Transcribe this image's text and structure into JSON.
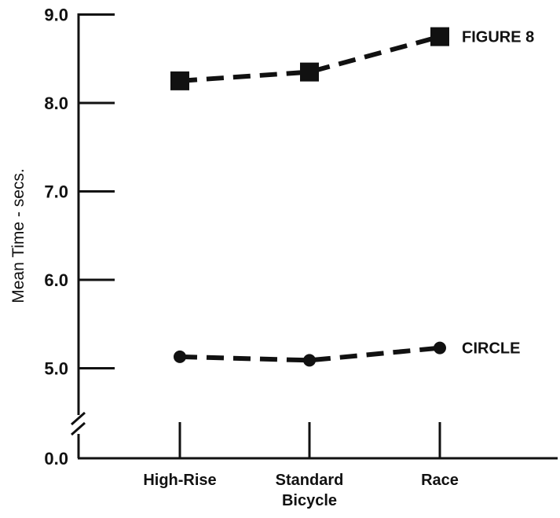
{
  "chart_data": {
    "type": "line",
    "ylabel": "Mean Time - secs.",
    "categories": [
      "High-Rise",
      "Standard\nBicycle",
      "Race"
    ],
    "y_ticks": [
      5.0,
      6.0,
      7.0,
      8.0,
      9.0
    ],
    "y_tick_labels": [
      "5.0",
      "6.0",
      "7.0",
      "8.0",
      "9.0"
    ],
    "y_origin_label": "0.0",
    "ylim": [
      4.1,
      9.1
    ],
    "axis_break": true,
    "grid": false,
    "legend": "none",
    "series": [
      {
        "name": "FIGURE 8",
        "marker": "square",
        "line_style": "dashed",
        "values": [
          8.25,
          8.35,
          8.75
        ]
      },
      {
        "name": "CIRCLE",
        "marker": "circle",
        "line_style": "dashed",
        "values": [
          5.13,
          5.09,
          5.23
        ]
      }
    ],
    "colors": {
      "ink": "#111111",
      "background": "#ffffff"
    }
  }
}
